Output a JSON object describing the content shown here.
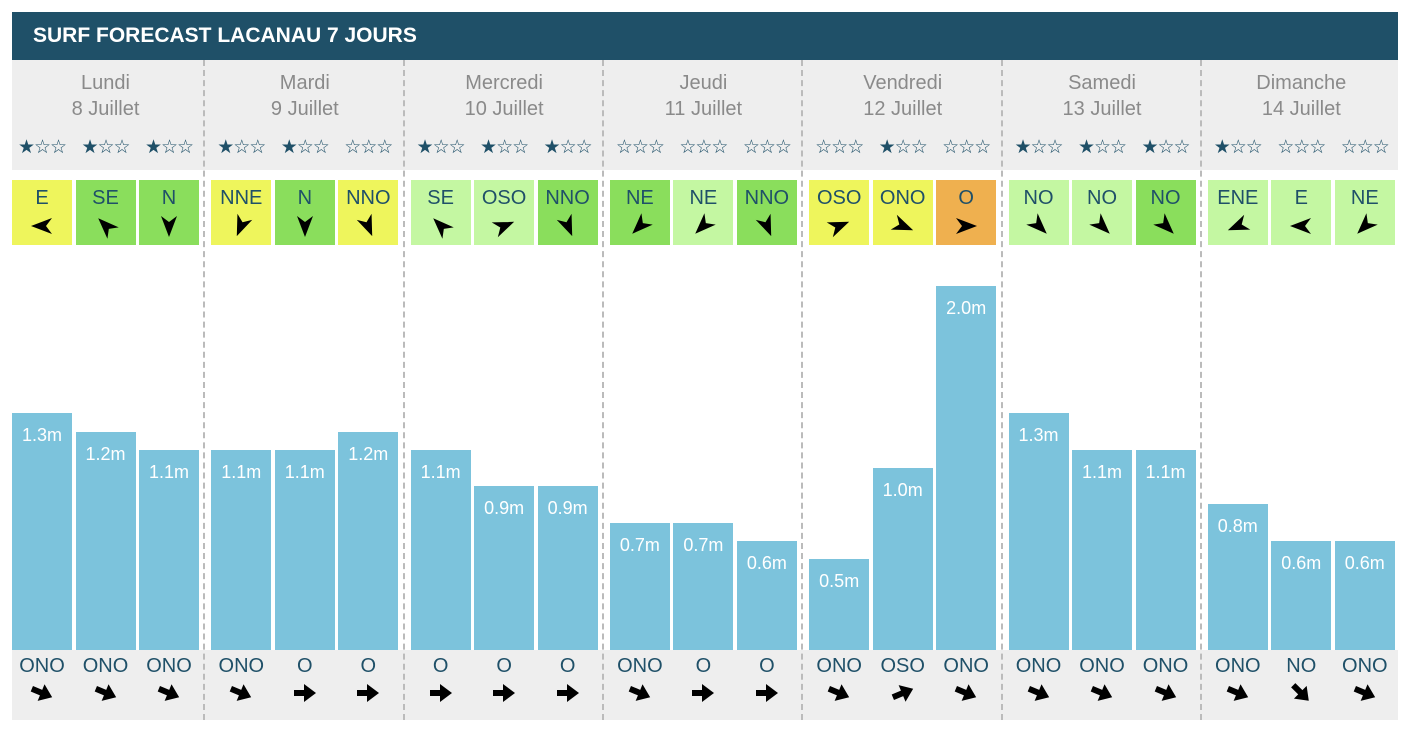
{
  "title": "SURF FORECAST LACANAU 7 JOURS",
  "colors": {
    "header": "#1f5068",
    "bar": "#7cc3dc",
    "yellow": "#eef55c",
    "green": "#8ade5c",
    "light": "#c4f7a2",
    "orange": "#efb04f"
  },
  "days": [
    {
      "name": "Lundi",
      "date": "8 Juillet",
      "slots": [
        {
          "stars": 1,
          "wind": "E",
          "wind_color": "yellow",
          "height": 1.3,
          "height_label": "1.3m",
          "swell": "ONO"
        },
        {
          "stars": 1,
          "wind": "SE",
          "wind_color": "green",
          "height": 1.2,
          "height_label": "1.2m",
          "swell": "ONO"
        },
        {
          "stars": 1,
          "wind": "N",
          "wind_color": "green",
          "height": 1.1,
          "height_label": "1.1m",
          "swell": "ONO"
        }
      ]
    },
    {
      "name": "Mardi",
      "date": "9 Juillet",
      "slots": [
        {
          "stars": 1,
          "wind": "NNE",
          "wind_color": "yellow",
          "height": 1.1,
          "height_label": "1.1m",
          "swell": "ONO"
        },
        {
          "stars": 1,
          "wind": "N",
          "wind_color": "green",
          "height": 1.1,
          "height_label": "1.1m",
          "swell": "O"
        },
        {
          "stars": 0,
          "wind": "NNO",
          "wind_color": "yellow",
          "height": 1.2,
          "height_label": "1.2m",
          "swell": "O"
        }
      ]
    },
    {
      "name": "Mercredi",
      "date": "10 Juillet",
      "slots": [
        {
          "stars": 1,
          "wind": "SE",
          "wind_color": "light",
          "height": 1.1,
          "height_label": "1.1m",
          "swell": "O"
        },
        {
          "stars": 1,
          "wind": "OSO",
          "wind_color": "light",
          "height": 0.9,
          "height_label": "0.9m",
          "swell": "O"
        },
        {
          "stars": 1,
          "wind": "NNO",
          "wind_color": "green",
          "height": 0.9,
          "height_label": "0.9m",
          "swell": "O"
        }
      ]
    },
    {
      "name": "Jeudi",
      "date": "11 Juillet",
      "slots": [
        {
          "stars": 0,
          "wind": "NE",
          "wind_color": "green",
          "height": 0.7,
          "height_label": "0.7m",
          "swell": "ONO"
        },
        {
          "stars": 0,
          "wind": "NE",
          "wind_color": "light",
          "height": 0.7,
          "height_label": "0.7m",
          "swell": "O"
        },
        {
          "stars": 0,
          "wind": "NNO",
          "wind_color": "green",
          "height": 0.6,
          "height_label": "0.6m",
          "swell": "O"
        }
      ]
    },
    {
      "name": "Vendredi",
      "date": "12 Juillet",
      "slots": [
        {
          "stars": 0,
          "wind": "OSO",
          "wind_color": "yellow",
          "height": 0.5,
          "height_label": "0.5m",
          "swell": "ONO"
        },
        {
          "stars": 1,
          "wind": "ONO",
          "wind_color": "yellow",
          "height": 1.0,
          "height_label": "1.0m",
          "swell": "OSO"
        },
        {
          "stars": 0,
          "wind": "O",
          "wind_color": "orange",
          "height": 2.0,
          "height_label": "2.0m",
          "swell": "ONO"
        }
      ]
    },
    {
      "name": "Samedi",
      "date": "13 Juillet",
      "slots": [
        {
          "stars": 1,
          "wind": "NO",
          "wind_color": "light",
          "height": 1.3,
          "height_label": "1.3m",
          "swell": "ONO"
        },
        {
          "stars": 1,
          "wind": "NO",
          "wind_color": "light",
          "height": 1.1,
          "height_label": "1.1m",
          "swell": "ONO"
        },
        {
          "stars": 1,
          "wind": "NO",
          "wind_color": "green",
          "height": 1.1,
          "height_label": "1.1m",
          "swell": "ONO"
        }
      ]
    },
    {
      "name": "Dimanche",
      "date": "14 Juillet",
      "slots": [
        {
          "stars": 1,
          "wind": "ENE",
          "wind_color": "light",
          "height": 0.8,
          "height_label": "0.8m",
          "swell": "ONO"
        },
        {
          "stars": 0,
          "wind": "E",
          "wind_color": "light",
          "height": 0.6,
          "height_label": "0.6m",
          "swell": "NO"
        },
        {
          "stars": 0,
          "wind": "NE",
          "wind_color": "light",
          "height": 0.6,
          "height_label": "0.6m",
          "swell": "ONO"
        }
      ]
    }
  ]
}
